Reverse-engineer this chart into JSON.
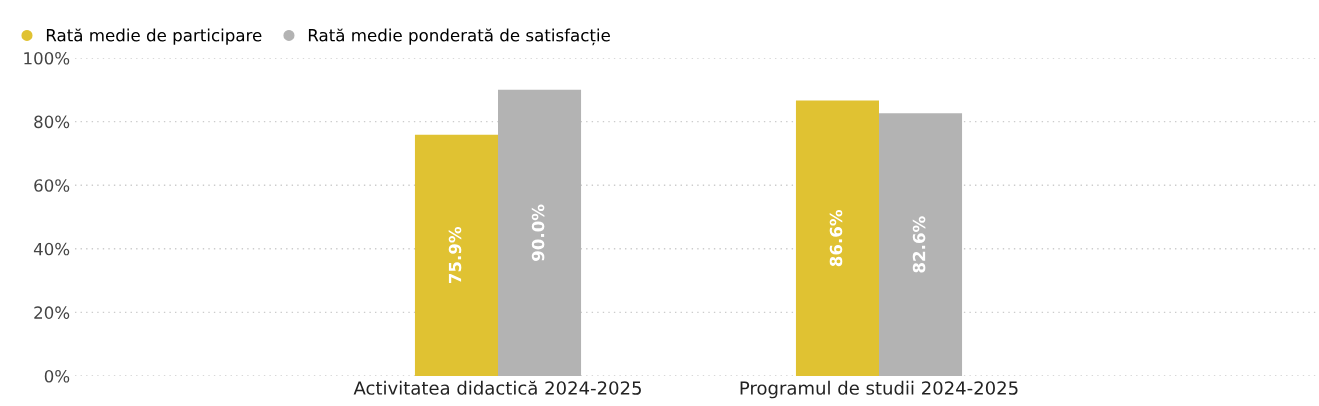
{
  "chart_data": {
    "type": "bar",
    "categories": [
      "Activitatea didactică 2024-2025",
      "Programul de studii 2024-2025"
    ],
    "series": [
      {
        "name": "Rată medie de participare",
        "color": "#e0c232",
        "values": [
          75.9,
          86.6
        ],
        "value_labels": [
          "75.9%",
          "86.6%"
        ]
      },
      {
        "name": "Rată medie ponderată de satisfacție",
        "color": "#b3b3b3",
        "values": [
          90.0,
          82.6
        ],
        "value_labels": [
          "90.0%",
          "82.6%"
        ]
      }
    ],
    "ylim": [
      0,
      100
    ],
    "yticks": [
      {
        "value": 0,
        "label": "0%"
      },
      {
        "value": 20,
        "label": "20%"
      },
      {
        "value": 40,
        "label": "40%"
      },
      {
        "value": 60,
        "label": "60%"
      },
      {
        "value": 80,
        "label": "80%"
      },
      {
        "value": 100,
        "label": "100%"
      }
    ],
    "grid": "y",
    "legend": "top left"
  }
}
